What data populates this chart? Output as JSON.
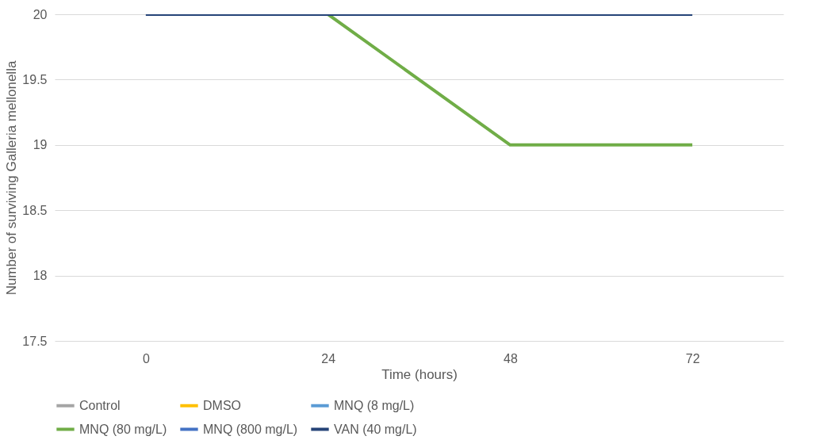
{
  "chart_data": {
    "type": "line",
    "xlabel": "Time (hours)",
    "ylabel": "Number of surviving Galleria mellonella",
    "categories": [
      "0",
      "24",
      "48",
      "72"
    ],
    "series": [
      {
        "name": "Control",
        "color": "#a5a5a5",
        "values": [
          null,
          null,
          null,
          null
        ]
      },
      {
        "name": "DMSO",
        "color": "#ffc000",
        "values": [
          null,
          null,
          null,
          null
        ]
      },
      {
        "name": "MNQ (8 mg/L)",
        "color": "#5b9bd5",
        "values": [
          null,
          null,
          null,
          null
        ]
      },
      {
        "name": "MNQ (80 mg/L)",
        "color": "#70ad47",
        "values": [
          null,
          20,
          19,
          19
        ]
      },
      {
        "name": "MNQ (800 mg/L)",
        "color": "#4472c4",
        "values": [
          null,
          null,
          null,
          null
        ]
      },
      {
        "name": "VAN (40 mg/L)",
        "color": "#264478",
        "values": [
          20,
          20,
          20,
          20
        ]
      }
    ],
    "ylim": [
      17.5,
      20
    ],
    "yticks": [
      17.5,
      18,
      18.5,
      19,
      19.5,
      20
    ],
    "grid": "y",
    "legend": "bottom",
    "marker": "none",
    "line_style": "solid"
  }
}
